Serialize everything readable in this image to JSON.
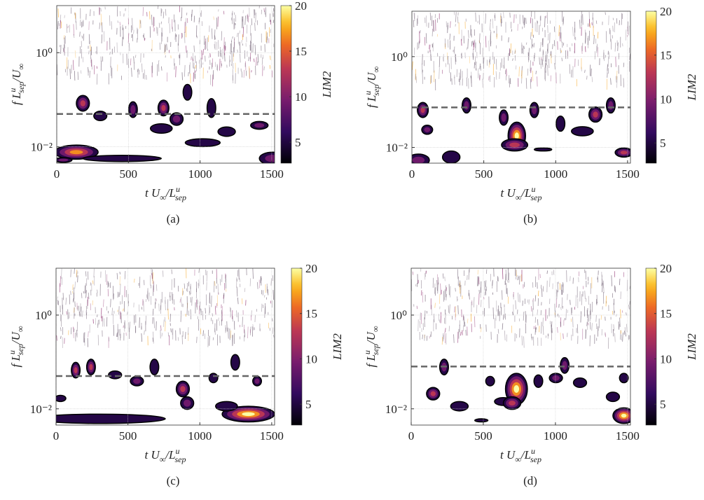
{
  "chart_data": [
    {
      "type": "contour",
      "title": "(a)",
      "xlabel": [
        "t U",
        "∞",
        "/L",
        "u",
        "sep"
      ],
      "ylabel": [
        "f L",
        "u",
        "sep",
        "/U",
        "∞"
      ],
      "colorbar_label": "LIM2",
      "xlim": [
        0,
        1520
      ],
      "xticks": [
        0,
        500,
        1000,
        1500
      ],
      "ylim": [
        0.0045,
        10
      ],
      "log_y": true,
      "yticks": [
        {
          "value": 0.01,
          "label": "10⁻²"
        },
        {
          "value": 1,
          "label": "10⁰"
        }
      ],
      "grid": true,
      "hline": 0.05,
      "clim": [
        2.7,
        20
      ],
      "cticks": [
        5,
        10,
        15,
        20
      ],
      "colormap": "inferno"
    },
    {
      "type": "contour",
      "title": "(b)",
      "xlabel": [
        "t U",
        "∞",
        "/L",
        "u",
        "sep"
      ],
      "ylabel": [
        "f L",
        "u",
        "sep",
        "/U",
        "∞"
      ],
      "colorbar_label": "LIM2",
      "xlim": [
        0,
        1520
      ],
      "xticks": [
        0,
        500,
        1000,
        1500
      ],
      "ylim": [
        0.0045,
        10
      ],
      "log_y": true,
      "yticks": [
        {
          "value": 0.01,
          "label": "10⁻²"
        },
        {
          "value": 1,
          "label": "10⁰"
        }
      ],
      "grid": true,
      "hline": 0.076,
      "clim": [
        2.7,
        20
      ],
      "cticks": [
        5,
        10,
        15,
        20
      ],
      "colormap": "inferno"
    },
    {
      "type": "contour",
      "title": "(c)",
      "xlabel": [
        "t U",
        "∞",
        "/L",
        "u",
        "sep"
      ],
      "ylabel": [
        "f L",
        "u",
        "sep",
        "/U",
        "∞"
      ],
      "colorbar_label": "LIM2",
      "xlim": [
        0,
        1520
      ],
      "xticks": [
        0,
        500,
        1000,
        1500
      ],
      "ylim": [
        0.0045,
        10
      ],
      "log_y": true,
      "yticks": [
        {
          "value": 0.01,
          "label": "10⁻²"
        },
        {
          "value": 1,
          "label": "10⁰"
        }
      ],
      "grid": true,
      "hline": 0.05,
      "clim": [
        2.7,
        20
      ],
      "cticks": [
        5,
        10,
        15,
        20
      ],
      "colormap": "inferno"
    },
    {
      "type": "contour",
      "title": "(d)",
      "xlabel": [
        "t U",
        "∞",
        "/L",
        "u",
        "sep"
      ],
      "ylabel": [
        "f L",
        "u",
        "sep",
        "/U",
        "∞"
      ],
      "colorbar_label": "LIM2",
      "xlim": [
        0,
        1520
      ],
      "xticks": [
        0,
        500,
        1000,
        1500
      ],
      "ylim": [
        0.0045,
        10
      ],
      "log_y": true,
      "yticks": [
        {
          "value": 0.01,
          "label": "10⁻²"
        },
        {
          "value": 1,
          "label": "10⁰"
        }
      ],
      "grid": true,
      "hline": 0.08,
      "clim": [
        2.7,
        20
      ],
      "cticks": [
        5,
        10,
        15,
        20
      ],
      "colormap": "inferno"
    }
  ]
}
